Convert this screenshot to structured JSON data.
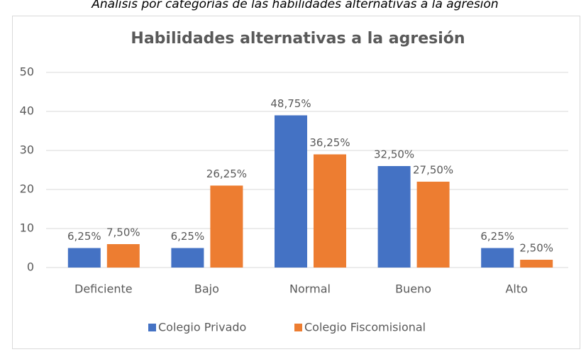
{
  "caption": "Análisis por categorías de las habilidades alternativas a la agresión",
  "chart_data": {
    "type": "bar",
    "title": "Habilidades alternativas a la agresión",
    "categories": [
      "Deficiente",
      "Bajo",
      "Normal",
      "Bueno",
      "Alto"
    ],
    "series": [
      {
        "name": "Colegio Privado",
        "color": "#4472c4",
        "values": [
          5,
          5,
          39,
          26,
          5
        ],
        "value_labels": [
          "6,25%",
          "6,25%",
          "48,75%",
          "32,50%",
          "6,25%"
        ]
      },
      {
        "name": "Colegio Fiscomisional",
        "color": "#ed7d31",
        "values": [
          6,
          21,
          29,
          22,
          2
        ],
        "value_labels": [
          "7,50%",
          "26,25%",
          "36,25%",
          "27,50%",
          "2,50%"
        ]
      }
    ],
    "ylim": [
      0,
      50
    ],
    "yticks": [
      0,
      10,
      20,
      30,
      40,
      50
    ],
    "grid": true,
    "legend": "bottom"
  }
}
